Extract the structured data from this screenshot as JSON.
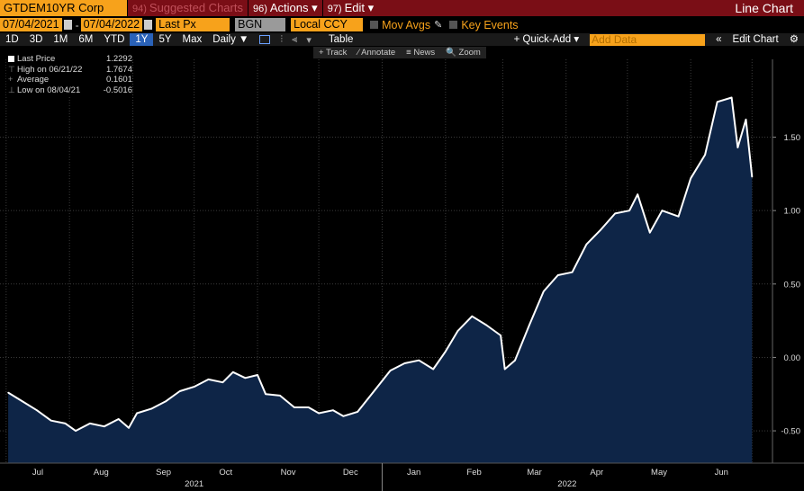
{
  "header": {
    "ticker": "GTDEM10YR Corp",
    "menu": [
      {
        "num": "94)",
        "label": "Suggested Charts",
        "dim": true
      },
      {
        "num": "96)",
        "label": "Actions",
        "caret": "▾",
        "dim": false
      },
      {
        "num": "97)",
        "label": "Edit",
        "caret": "▾",
        "dim": false
      }
    ],
    "title": "Line Chart"
  },
  "controls": {
    "start_date": "07/04/2021",
    "end_date": "07/04/2022",
    "field": "Last Px",
    "source": "BGN",
    "currency": "Local CCY",
    "mov_avgs": "Mov Avgs",
    "key_events": "Key Events"
  },
  "toolbar": {
    "ranges": [
      "1D",
      "3D",
      "1M",
      "6M",
      "YTD",
      "1Y",
      "5Y",
      "Max"
    ],
    "active_range": "1Y",
    "period": "Daily ▼",
    "table": "Table",
    "quick_add": "+ Quick-Add ▾",
    "add_data_placeholder": "Add Data",
    "edit_chart": "Edit Chart",
    "collapse": "«",
    "settings": "⚙"
  },
  "chart_tools": [
    "+ Track",
    "⁄ Annotate",
    "≡ News",
    "🔍 Zoom"
  ],
  "legend": [
    {
      "name": "Last Price",
      "value": "1.2292",
      "marker": "swatch"
    },
    {
      "name": "High on 06/21/22",
      "value": "1.7674",
      "marker": "T"
    },
    {
      "name": "Average",
      "value": "0.1601",
      "marker": "+"
    },
    {
      "name": "Low on 08/04/21",
      "value": "-0.5016",
      "marker": "⊥"
    }
  ],
  "colors": {
    "line": "#ffffff",
    "fill": "#0e2547",
    "background": "#000000"
  },
  "chart_data": {
    "type": "area",
    "series": [
      {
        "name": "Last Price",
        "points": [
          [
            "2021-07-02",
            -0.24
          ],
          [
            "2021-07-09",
            -0.3
          ],
          [
            "2021-07-16",
            -0.36
          ],
          [
            "2021-07-23",
            -0.43
          ],
          [
            "2021-07-30",
            -0.45
          ],
          [
            "2021-08-04",
            -0.5
          ],
          [
            "2021-08-11",
            -0.45
          ],
          [
            "2021-08-18",
            -0.47
          ],
          [
            "2021-08-25",
            -0.42
          ],
          [
            "2021-08-30",
            -0.48
          ],
          [
            "2021-09-03",
            -0.38
          ],
          [
            "2021-09-10",
            -0.35
          ],
          [
            "2021-09-17",
            -0.3
          ],
          [
            "2021-09-24",
            -0.23
          ],
          [
            "2021-10-01",
            -0.2
          ],
          [
            "2021-10-08",
            -0.15
          ],
          [
            "2021-10-15",
            -0.17
          ],
          [
            "2021-10-20",
            -0.1
          ],
          [
            "2021-10-26",
            -0.14
          ],
          [
            "2021-11-01",
            -0.12
          ],
          [
            "2021-11-05",
            -0.25
          ],
          [
            "2021-11-12",
            -0.26
          ],
          [
            "2021-11-19",
            -0.34
          ],
          [
            "2021-11-26",
            -0.34
          ],
          [
            "2021-12-01",
            -0.38
          ],
          [
            "2021-12-08",
            -0.36
          ],
          [
            "2021-12-13",
            -0.4
          ],
          [
            "2021-12-20",
            -0.37
          ],
          [
            "2021-12-28",
            -0.23
          ],
          [
            "2022-01-05",
            -0.09
          ],
          [
            "2022-01-12",
            -0.04
          ],
          [
            "2022-01-19",
            -0.02
          ],
          [
            "2022-01-26",
            -0.08
          ],
          [
            "2022-02-01",
            0.04
          ],
          [
            "2022-02-07",
            0.18
          ],
          [
            "2022-02-14",
            0.28
          ],
          [
            "2022-02-21",
            0.22
          ],
          [
            "2022-02-28",
            0.15
          ],
          [
            "2022-03-02",
            -0.08
          ],
          [
            "2022-03-07",
            -0.02
          ],
          [
            "2022-03-14",
            0.22
          ],
          [
            "2022-03-21",
            0.45
          ],
          [
            "2022-03-28",
            0.56
          ],
          [
            "2022-04-04",
            0.58
          ],
          [
            "2022-04-11",
            0.77
          ],
          [
            "2022-04-18",
            0.87
          ],
          [
            "2022-04-25",
            0.98
          ],
          [
            "2022-05-02",
            1.0
          ],
          [
            "2022-05-06",
            1.11
          ],
          [
            "2022-05-12",
            0.85
          ],
          [
            "2022-05-18",
            1.0
          ],
          [
            "2022-05-26",
            0.96
          ],
          [
            "2022-06-01",
            1.22
          ],
          [
            "2022-06-08",
            1.38
          ],
          [
            "2022-06-14",
            1.74
          ],
          [
            "2022-06-21",
            1.77
          ],
          [
            "2022-06-24",
            1.43
          ],
          [
            "2022-06-28",
            1.62
          ],
          [
            "2022-07-01",
            1.23
          ]
        ]
      }
    ],
    "x_ticks": [
      "Jul",
      "Aug",
      "Sep",
      "Oct",
      "Nov",
      "Dec",
      "Jan",
      "Feb",
      "Mar",
      "Apr",
      "May",
      "Jun"
    ],
    "x_years": [
      "2021",
      "2022"
    ],
    "y_ticks": [
      "1.50",
      "1.00",
      "0.50",
      "0.00",
      "-0.50"
    ],
    "ylim": [
      -0.72,
      2.03
    ],
    "grid": true
  }
}
